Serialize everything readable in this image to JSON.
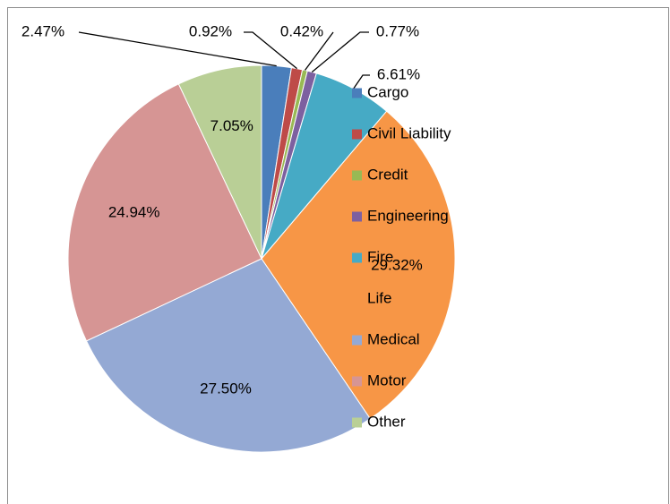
{
  "chart_data": {
    "type": "pie",
    "categories": [
      "Cargo",
      "Civil Liability",
      "Credit",
      "Engineering",
      "Fire",
      "Life",
      "Medical",
      "Motor",
      "Other"
    ],
    "values": [
      2.47,
      0.92,
      0.42,
      0.77,
      6.61,
      29.32,
      27.5,
      24.94,
      7.05
    ],
    "value_labels": [
      "2.47%",
      "0.92%",
      "0.42%",
      "0.77%",
      "6.61%",
      "29.32%",
      "27.50%",
      "24.94%",
      "7.05%"
    ],
    "colors": [
      "#4a7ebb",
      "#be4b48",
      "#98b954",
      "#7d60a0",
      "#46aac5",
      "#f79646",
      "#94a9d4",
      "#d69594",
      "#b9cf96"
    ],
    "legend": "right"
  }
}
